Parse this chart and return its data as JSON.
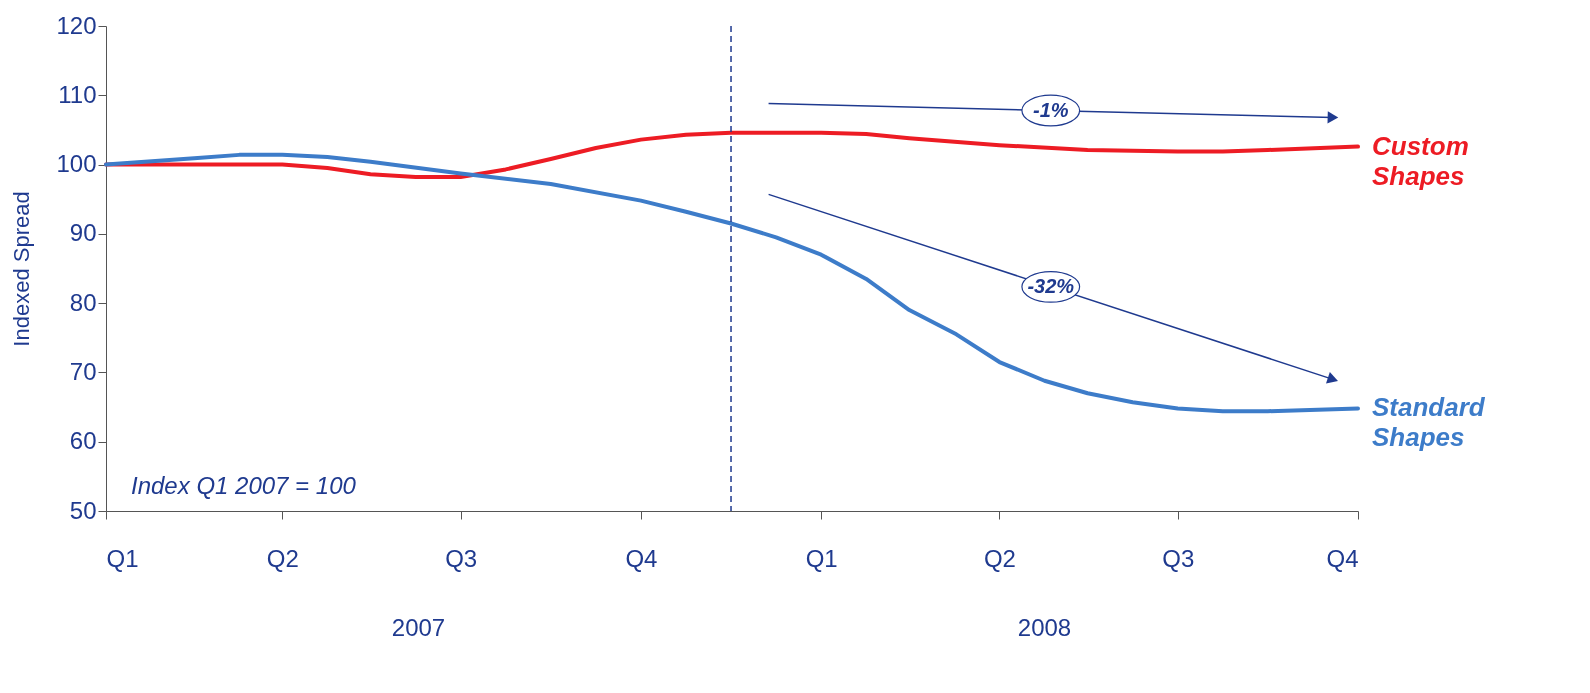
{
  "chart_data": {
    "type": "line",
    "ylabel": "Indexed Spread",
    "legend": false,
    "grid": false,
    "marker": "none",
    "line_style": "solid",
    "xlim": [
      "2007-01-01",
      "2008-10-01"
    ],
    "xticks": [
      {
        "value": "2007-01-01",
        "label": "Q1"
      },
      {
        "value": "2007-04-01",
        "label": "Q2"
      },
      {
        "value": "2007-07-01",
        "label": "Q3"
      },
      {
        "value": "2007-10-01",
        "label": "Q4"
      },
      {
        "value": "2008-01-01",
        "label": "Q1"
      },
      {
        "value": "2008-04-01",
        "label": "Q2"
      },
      {
        "value": "2008-07-01",
        "label": "Q3"
      },
      {
        "value": "2008-10-01",
        "label": "Q4"
      }
    ],
    "ylim": [
      50,
      120
    ],
    "yticks": [
      50,
      60,
      70,
      80,
      90,
      100,
      110,
      120
    ],
    "series": [
      {
        "name": "Custom Shapes",
        "color": "#ed1c24",
        "x": [
          "2007-01-01",
          "2007-02-15",
          "2007-04-01",
          "2007-04-24",
          "2007-05-16",
          "2007-06-08",
          "2007-07-01",
          "2007-07-24",
          "2007-08-16",
          "2007-09-08",
          "2007-10-01",
          "2007-10-24",
          "2007-11-16",
          "2008-01-01",
          "2008-01-24",
          "2008-02-15",
          "2008-04-01",
          "2008-05-16",
          "2008-07-01",
          "2008-07-24",
          "2008-08-16",
          "2008-10-01"
        ],
        "values": [
          100,
          100,
          100,
          99.5,
          98.6,
          98.2,
          98.2,
          99.3,
          100.8,
          102.4,
          103.6,
          104.3,
          104.6,
          104.6,
          104.4,
          103.8,
          102.8,
          102.1,
          101.9,
          101.9,
          102.1,
          102.6
        ]
      },
      {
        "name": "Standard Shapes",
        "color": "#3d7cc9",
        "x": [
          "2007-01-01",
          "2007-02-15",
          "2007-03-10",
          "2007-04-01",
          "2007-04-24",
          "2007-05-16",
          "2007-07-01",
          "2007-08-16",
          "2007-10-01",
          "2007-10-24",
          "2007-11-16",
          "2007-12-09",
          "2008-01-01",
          "2008-01-24",
          "2008-02-15",
          "2008-03-10",
          "2008-04-01",
          "2008-04-24",
          "2008-05-16",
          "2008-06-08",
          "2008-07-01",
          "2008-07-24",
          "2008-08-16",
          "2008-10-01"
        ],
        "values": [
          100,
          100.9,
          101.4,
          101.4,
          101.1,
          100.4,
          98.7,
          97.2,
          94.8,
          93.2,
          91.5,
          89.5,
          87,
          83.5,
          79,
          75.5,
          71.5,
          68.8,
          67,
          65.7,
          64.8,
          64.4,
          64.4,
          64.8
        ]
      }
    ],
    "ref_lines": [
      {
        "axis": "x",
        "value": "2007-11-16",
        "line_style": "dashed",
        "color": "#1f3a8f"
      }
    ],
    "annotations": [
      "Index Q1 2007 = 100",
      "2007",
      "2008",
      "-1%",
      "-32%"
    ]
  }
}
